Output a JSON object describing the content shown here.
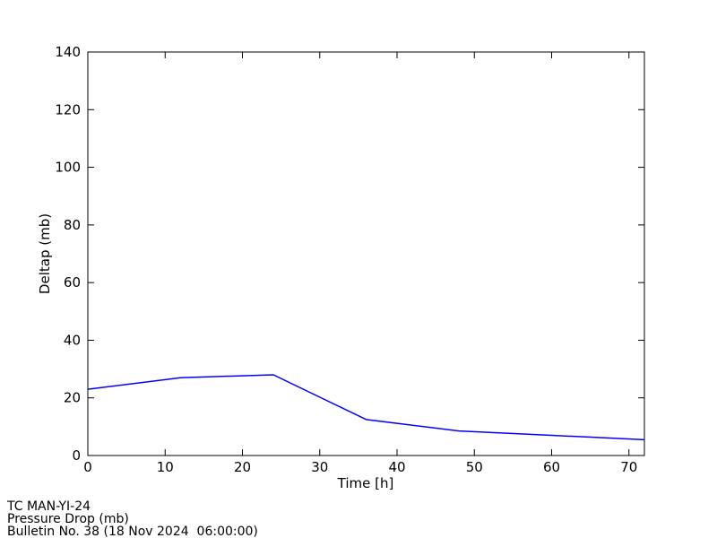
{
  "figure": {
    "background_color": "#ffffff",
    "axis_color": "#000000",
    "line_color": "#0000ff"
  },
  "chart_data": {
    "type": "line",
    "title": "",
    "xlabel": "Time [h]",
    "ylabel": "Deltap (mb)",
    "x": [
      0,
      12,
      24,
      36,
      48,
      60,
      72
    ],
    "y": [
      23,
      27,
      28,
      12.5,
      8.5,
      7,
      5.5
    ],
    "series_name": "pressure-drop",
    "xlim": [
      0,
      72
    ],
    "ylim": [
      0,
      140
    ],
    "xticks": [
      0,
      10,
      20,
      30,
      40,
      50,
      60,
      70
    ],
    "yticks": [
      0,
      20,
      40,
      60,
      80,
      100,
      120,
      140
    ],
    "grid": false,
    "legend": null,
    "tick_style": "inward-all-four-sides"
  },
  "annotations": {
    "storm_id": "TC MAN-YI-24",
    "quantity": "Pressure Drop (mb)",
    "bulletin": "Bulletin No. 38 (18 Nov 2024  06:00:00)"
  }
}
